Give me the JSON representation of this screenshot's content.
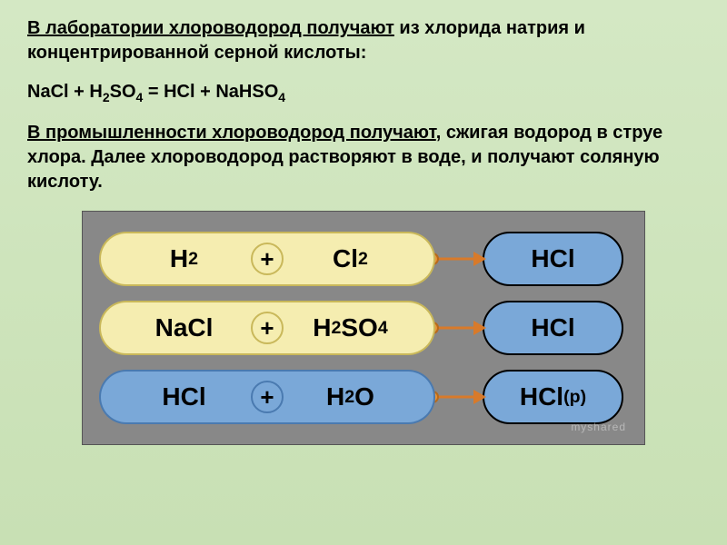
{
  "para1_underline": "В лаборатории хлороводород получают",
  "para1_rest": " из хлорида натрия и концентрированной серной кислоты:",
  "equation_html": "NaCl + H<sub>2</sub>SO<sub>4</sub> = HCl + NaHSO<sub>4</sub>",
  "para2_underline": "В промышленности хлороводород получают",
  "para2_rest": ", сжигая водород в струе хлора. Далее хлороводород растворяют в воде, и получают соляную кислоту.",
  "diagram": {
    "bg": "#888888",
    "yellow_fill": "#f5edb0",
    "yellow_border": "#c9b85a",
    "blue_fill": "#7aa8d8",
    "blue_border": "#4a7ab0",
    "orange_line": "#d87a2a",
    "orange_dot": "#e8953a",
    "rows": [
      {
        "left_html": "H<sub>2</sub>",
        "right_html": "Cl<sub>2</sub>",
        "pair_style": "yellow",
        "result_html": "HCl",
        "result_style": "blue"
      },
      {
        "left_html": "NaCl",
        "right_html": "H<sub>2</sub>SO<sub>4</sub>",
        "pair_style": "yellow",
        "result_html": "HCl",
        "result_style": "blue"
      },
      {
        "left_html": "HCl",
        "right_html": "H<sub>2</sub>O",
        "pair_style": "blue",
        "result_html": "HCl<sub>(р)</sub>",
        "result_style": "blue"
      }
    ]
  },
  "watermark": "myshared"
}
